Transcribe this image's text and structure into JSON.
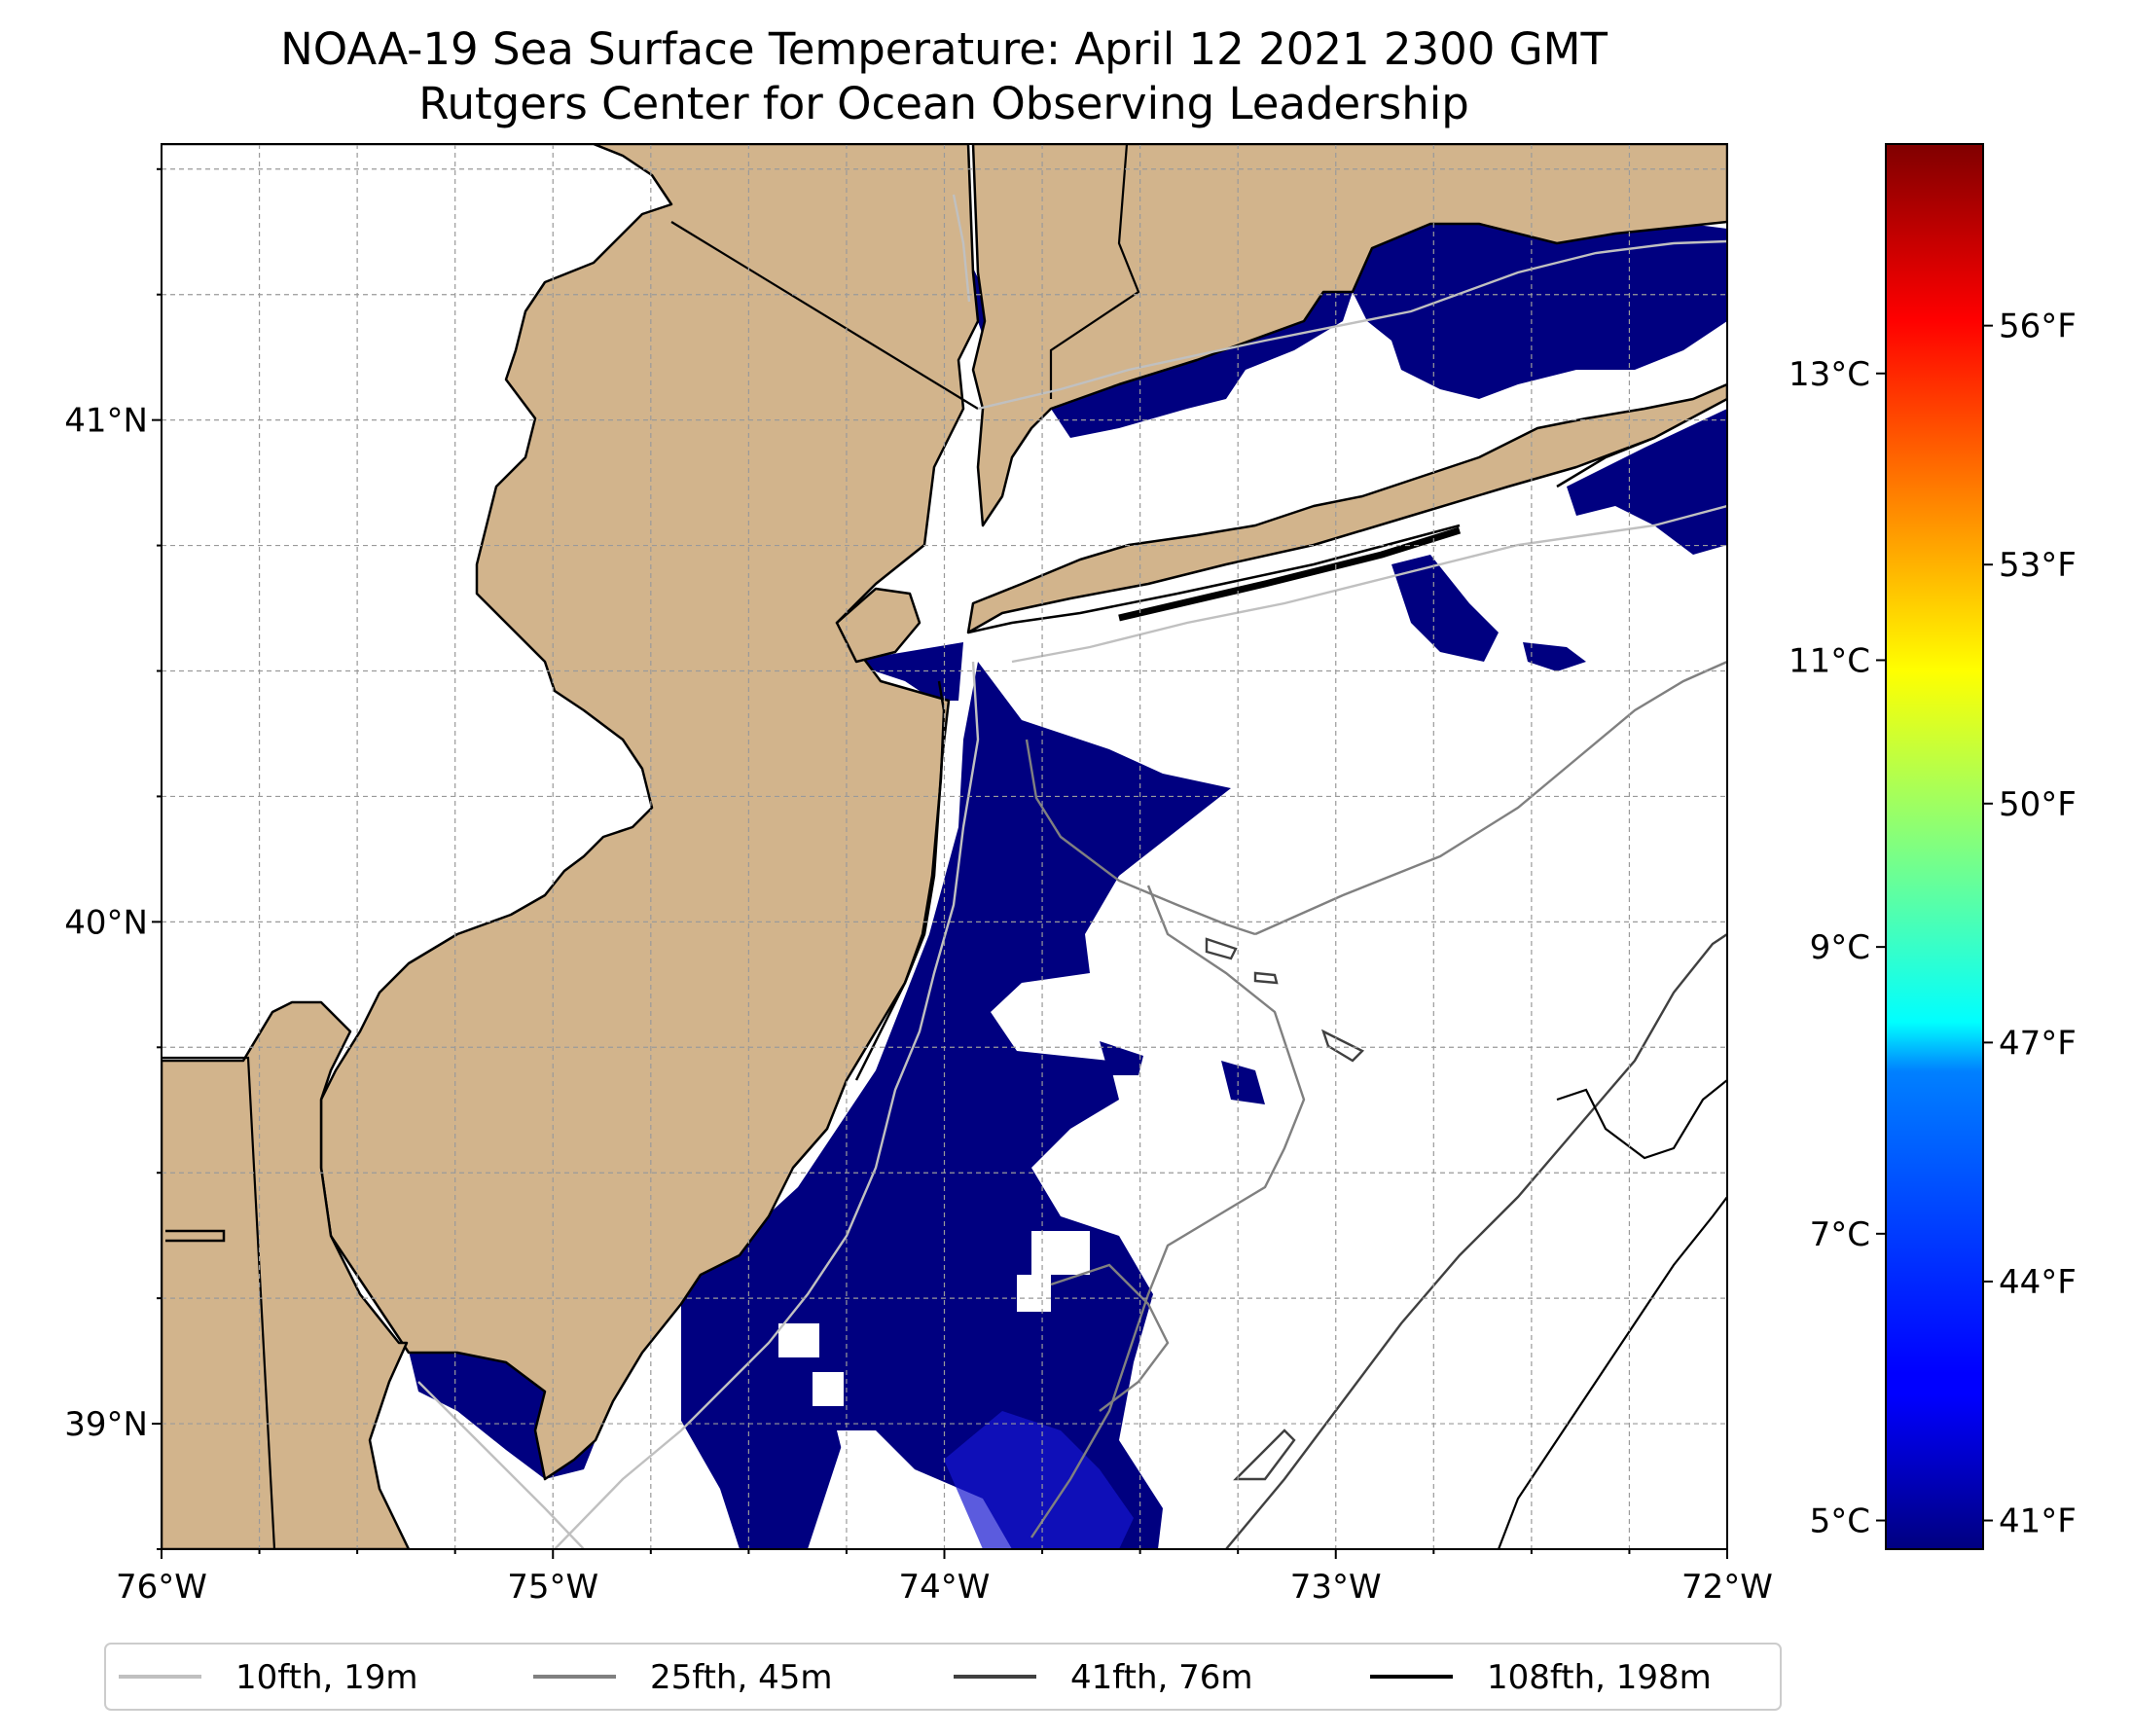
{
  "title": {
    "line1": "NOAA-19 Sea Surface Temperature: April 12 2021 2300 GMT",
    "line2": "Rutgers Center for Ocean Observing Leadership"
  },
  "map": {
    "lon_range": [
      -76.0,
      -72.0
    ],
    "lat_range": [
      38.75,
      41.55
    ],
    "x_ticks": [
      {
        "value": -76,
        "label": "76°W"
      },
      {
        "value": -75,
        "label": "75°W"
      },
      {
        "value": -74,
        "label": "74°W"
      },
      {
        "value": -73,
        "label": "73°W"
      },
      {
        "value": -72,
        "label": "72°W"
      }
    ],
    "y_ticks": [
      {
        "value": 39,
        "label": "39°N"
      },
      {
        "value": 40,
        "label": "40°N"
      },
      {
        "value": 41,
        "label": "41°N"
      }
    ],
    "gridlines": "dashed",
    "colors": {
      "land": "#d2b48c",
      "ocean_no_data": "#ffffff",
      "cold_sst": "#000080",
      "coastline": "#000000"
    }
  },
  "colorbar": {
    "colormap": "jet",
    "range_c": [
      4.8,
      14.6
    ],
    "celsius_ticks": [
      {
        "value": 5,
        "label": "5°C"
      },
      {
        "value": 7,
        "label": "7°C"
      },
      {
        "value": 9,
        "label": "9°C"
      },
      {
        "value": 11,
        "label": "11°C"
      },
      {
        "value": 13,
        "label": "13°C"
      }
    ],
    "fahrenheit_ticks": [
      {
        "value": 41,
        "label": "41°F"
      },
      {
        "value": 44,
        "label": "44°F"
      },
      {
        "value": 47,
        "label": "47°F"
      },
      {
        "value": 50,
        "label": "50°F"
      },
      {
        "value": 53,
        "label": "53°F"
      },
      {
        "value": 56,
        "label": "56°F"
      }
    ]
  },
  "legend": {
    "placement": "bottom",
    "items": [
      {
        "label": "10fth, 19m",
        "color": "#c0c0c0"
      },
      {
        "label": "25fth, 45m",
        "color": "#808080"
      },
      {
        "label": "41fth, 76m",
        "color": "#404040"
      },
      {
        "label": "108fth, 198m",
        "color": "#000000"
      }
    ]
  }
}
